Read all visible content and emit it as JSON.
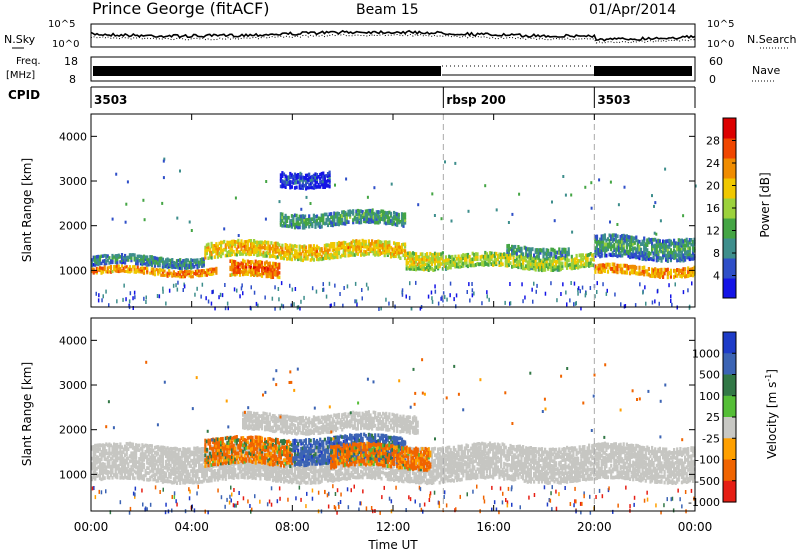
{
  "header": {
    "station": "Prince George (fitACF)",
    "beam": "Beam 15",
    "date": "01/Apr/2014"
  },
  "chart_data": [
    {
      "type": "line",
      "panel": "noise",
      "left_label": "N.Sky",
      "right_label": "N.Search",
      "yticks_left": [
        "10^5",
        "10^0"
      ],
      "yticks_right": [
        "10^5",
        "10^0"
      ]
    },
    {
      "type": "line",
      "panel": "frequency",
      "left_label_top": "Freq.",
      "left_label_bottom": "[MHz]",
      "yticks_left": [
        18,
        8
      ],
      "right_label": "Nave",
      "yticks_right": [
        60,
        0
      ]
    },
    {
      "type": "table",
      "panel": "cpid",
      "label": "CPID",
      "segments": [
        {
          "start": "00:00",
          "end": "14:00",
          "name": "3503"
        },
        {
          "start": "14:00",
          "end": "20:00",
          "name": "rbsp 200"
        },
        {
          "start": "20:00",
          "end": "24:00",
          "name": "3503"
        }
      ]
    },
    {
      "type": "heatmap",
      "panel": "power",
      "ylabel": "Slant Range [km]",
      "ylim": [
        180,
        4500
      ],
      "yticks": [
        1000,
        2000,
        3000,
        4000
      ],
      "colorbar_label": "Power [dB]",
      "colorbar_ticks": [
        4,
        8,
        12,
        16,
        20,
        24,
        28
      ],
      "colorbar_colors": [
        "#1414e6",
        "#2f4fc8",
        "#3e8e8c",
        "#44a544",
        "#9cd23c",
        "#f0c800",
        "#f08c00",
        "#f04600",
        "#dc0000"
      ],
      "bands": [
        {
          "t0": 0,
          "t1": 5,
          "r": 1020,
          "w": 150,
          "level": 24
        },
        {
          "t0": 0,
          "t1": 4.5,
          "r": 1250,
          "w": 220,
          "level": 10
        },
        {
          "t0": 4.5,
          "t1": 12.5,
          "r": 1500,
          "w": 350,
          "level": 22
        },
        {
          "t0": 5.5,
          "t1": 7.5,
          "r": 1050,
          "w": 350,
          "level": 26
        },
        {
          "t0": 7.5,
          "t1": 12.5,
          "r": 2200,
          "w": 300,
          "level": 12
        },
        {
          "t0": 7.5,
          "t1": 9.5,
          "r": 3100,
          "w": 350,
          "level": 6
        },
        {
          "t0": 12.5,
          "t1": 14,
          "r": 1300,
          "w": 400,
          "level": 20
        },
        {
          "t0": 14,
          "t1": 20,
          "r": 1250,
          "w": 300,
          "level": 18
        },
        {
          "t0": 16.5,
          "t1": 19,
          "r": 1500,
          "w": 200,
          "level": 11
        },
        {
          "t0": 20,
          "t1": 24,
          "r": 1050,
          "w": 200,
          "level": 24
        },
        {
          "t0": 20,
          "t1": 24,
          "r": 1550,
          "w": 500,
          "level": 12
        }
      ]
    },
    {
      "type": "heatmap",
      "panel": "velocity",
      "ylabel": "Slant Range [km]",
      "ylim": [
        180,
        4500
      ],
      "yticks": [
        1000,
        2000,
        3000,
        4000
      ],
      "colorbar_label": "Velocity [m s^-1]",
      "colorbar_ticks": [
        1000,
        500,
        100,
        25,
        -25,
        -100,
        -500,
        -1000
      ],
      "colorbar_colors": [
        "#1e3cc8",
        "#3c64b4",
        "#327846",
        "#55be37",
        "#c8c8c4",
        "#ffa000",
        "#f06400",
        "#e61e14"
      ],
      "ground_scatter_color": "#c6c6c2",
      "bands": [
        {
          "t0": 0,
          "t1": 24,
          "r": 1300,
          "w": 800,
          "level": 0,
          "kind": "ground"
        },
        {
          "t0": 6,
          "t1": 13,
          "r": 2200,
          "w": 400,
          "level": 0,
          "kind": "ground"
        },
        {
          "t0": 4.5,
          "t1": 8,
          "r": 1550,
          "w": 600,
          "level": -150
        },
        {
          "t0": 8,
          "t1": 12.5,
          "r": 1600,
          "w": 600,
          "level": 300
        },
        {
          "t0": 9.5,
          "t1": 13.5,
          "r": 1450,
          "w": 500,
          "level": -200
        }
      ]
    }
  ],
  "xaxis": {
    "label": "Time UT",
    "ticks": [
      "00:00",
      "04:00",
      "08:00",
      "12:00",
      "16:00",
      "20:00",
      "00:00"
    ],
    "range_hours": [
      0,
      24
    ]
  }
}
